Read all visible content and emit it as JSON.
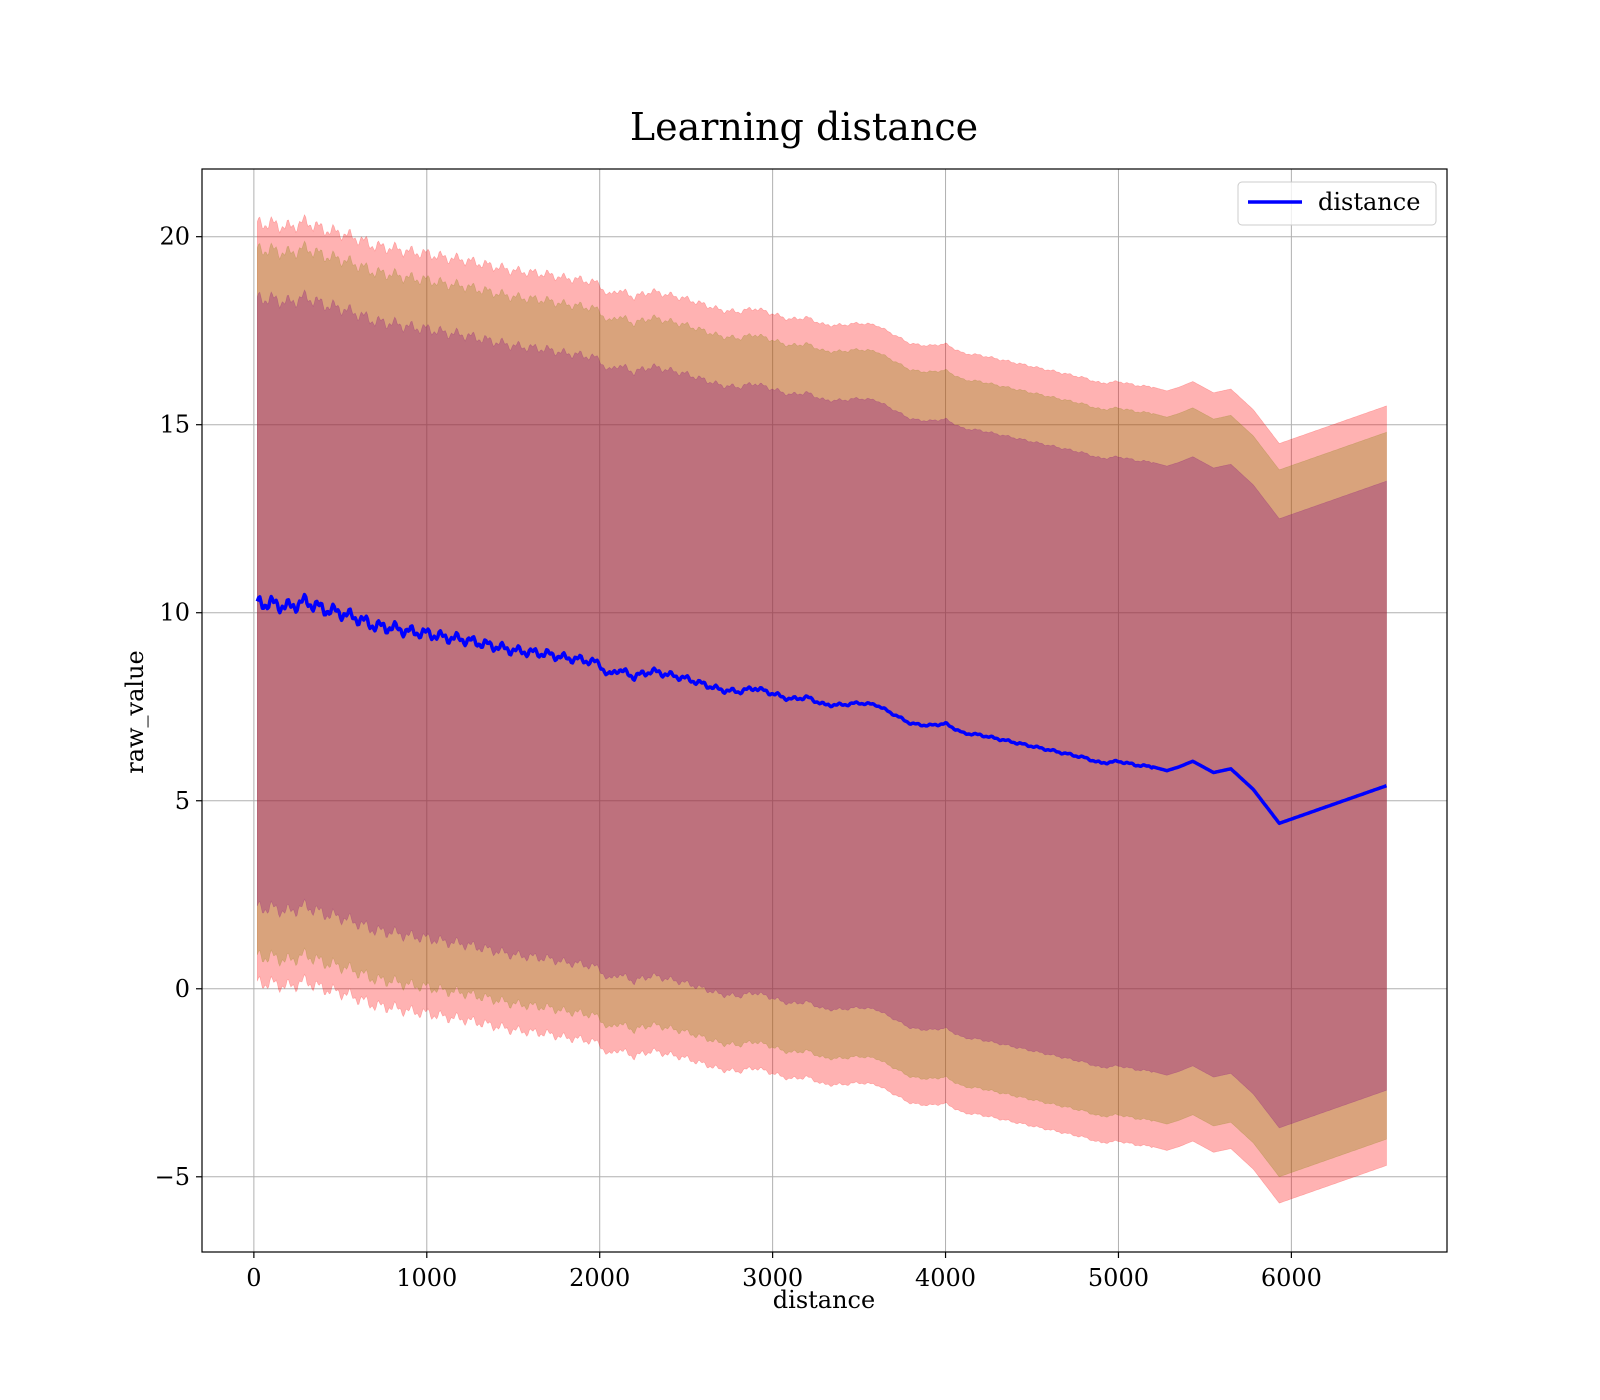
{
  "chart_data": {
    "type": "line",
    "title": "Learning distance",
    "xlabel": "distance",
    "ylabel": "raw_value",
    "xlim": [
      -300,
      6900
    ],
    "ylim": [
      -7,
      21.8
    ],
    "xticks": [
      0,
      1000,
      2000,
      3000,
      4000,
      5000,
      6000
    ],
    "yticks": [
      -5,
      0,
      5,
      10,
      15,
      20
    ],
    "xtick_labels": [
      "0",
      "1000",
      "2000",
      "3000",
      "4000",
      "5000",
      "6000"
    ],
    "ytick_labels": [
      "−5",
      "0",
      "5",
      "10",
      "15",
      "20"
    ],
    "grid": true,
    "legend": {
      "position": "upper right",
      "entries": [
        "distance"
      ]
    },
    "series": [
      {
        "name": "distance",
        "color": "#0000ff",
        "x": [
          20,
          100,
          200,
          300,
          400,
          500,
          600,
          700,
          800,
          900,
          1000,
          1100,
          1200,
          1300,
          1400,
          1500,
          1600,
          1700,
          1800,
          1900,
          2000,
          2050,
          2100,
          2200,
          2300,
          2400,
          2500,
          2600,
          2700,
          2800,
          2900,
          3000,
          3100,
          3200,
          3300,
          3400,
          3500,
          3600,
          3700,
          3800,
          3900,
          4000,
          4100,
          4200,
          4300,
          4400,
          4500,
          4600,
          4700,
          4800,
          4900,
          5000,
          5100,
          5200,
          5280,
          5350,
          5430,
          5550,
          5650,
          5780,
          5930,
          6550
        ],
        "y": [
          10.25,
          10.25,
          10.15,
          10.3,
          10.1,
          10.0,
          9.85,
          9.65,
          9.6,
          9.5,
          9.45,
          9.35,
          9.3,
          9.2,
          9.1,
          9.0,
          8.95,
          8.9,
          8.8,
          8.75,
          8.65,
          8.3,
          8.5,
          8.3,
          8.45,
          8.35,
          8.25,
          8.1,
          7.95,
          7.9,
          8.0,
          7.85,
          7.7,
          7.75,
          7.55,
          7.55,
          7.6,
          7.55,
          7.3,
          7.05,
          7.0,
          7.05,
          6.8,
          6.75,
          6.65,
          6.55,
          6.45,
          6.35,
          6.25,
          6.15,
          6.0,
          6.05,
          5.95,
          5.9,
          5.8,
          5.9,
          6.05,
          5.75,
          5.85,
          5.3,
          4.4,
          5.4
        ]
      }
    ],
    "bands": [
      {
        "description": "std ×3",
        "color": "#ff0000",
        "alpha": 0.3,
        "offset": 10.1
      },
      {
        "description": "std ×2",
        "color": "#808000",
        "alpha": 0.3,
        "offset": 9.4
      },
      {
        "description": "std ×1",
        "color": "#800080",
        "alpha": 0.3,
        "offset": 8.1
      }
    ]
  }
}
